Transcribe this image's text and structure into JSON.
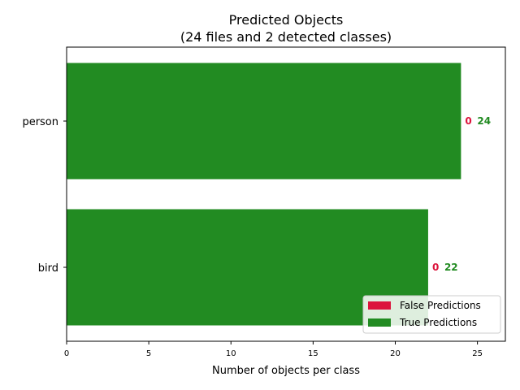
{
  "chart_data": {
    "type": "bar",
    "orientation": "horizontal",
    "stacked": true,
    "title_line1": "Predicted Objects",
    "title_line2": "(24 files and 2 detected classes)",
    "xlabel": "Number of objects per class",
    "ylabel": "",
    "categories": [
      "bird",
      "person"
    ],
    "series": [
      {
        "name": "False Predictions",
        "color": "#dc143c",
        "values": [
          0,
          0
        ]
      },
      {
        "name": "True Predictions",
        "color": "#228b22",
        "values": [
          22,
          24
        ]
      }
    ],
    "xlim": [
      0,
      26.7
    ],
    "xticks": [
      0,
      5,
      10,
      15,
      20,
      25
    ],
    "legend": "bottom-right",
    "grid": false
  }
}
